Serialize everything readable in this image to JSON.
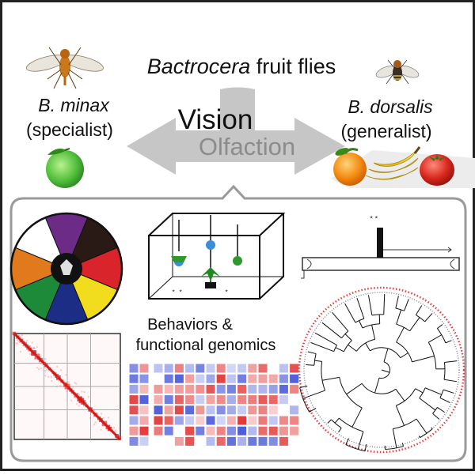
{
  "header": {
    "title_italic": "Bactrocera",
    "title_rest": " fruit flies"
  },
  "left_species": {
    "name": "B. minax",
    "role": "(specialist)"
  },
  "right_species": {
    "name": "B. dorsalis",
    "role": "(generalist)"
  },
  "arrow": {
    "label_top": "Vision",
    "label_bottom": "Olfaction"
  },
  "panel": {
    "caption_line1": "Behaviors &",
    "caption_line2": "functional genomics"
  },
  "icons": {
    "left_fly": "fly-icon",
    "right_fly": "fly-icon",
    "citrus": "green-citrus-icon",
    "fruits": [
      "orange-icon",
      "banana-icon",
      "tomato-icon"
    ],
    "color_wheel": "color-wheel-icon",
    "cage": "behavior-cage-icon",
    "tube": "olfactometer-tube-icon",
    "hic_map": "hic-contact-map-icon",
    "heatmap": "expression-heatmap-icon",
    "tree": "phylogenetic-tree-icon"
  },
  "colors": {
    "arrow_gray": "#c4c4c4",
    "panel_border": "#999999",
    "wheel": [
      "#6b2b86",
      "#2a1a16",
      "#d8242a",
      "#f1dd1d",
      "#1c2d86",
      "#1d8a3a",
      "#e07a1c",
      "#ffffff"
    ],
    "heat_red": "#e23b3b",
    "heat_blue": "#4a5ad8"
  }
}
